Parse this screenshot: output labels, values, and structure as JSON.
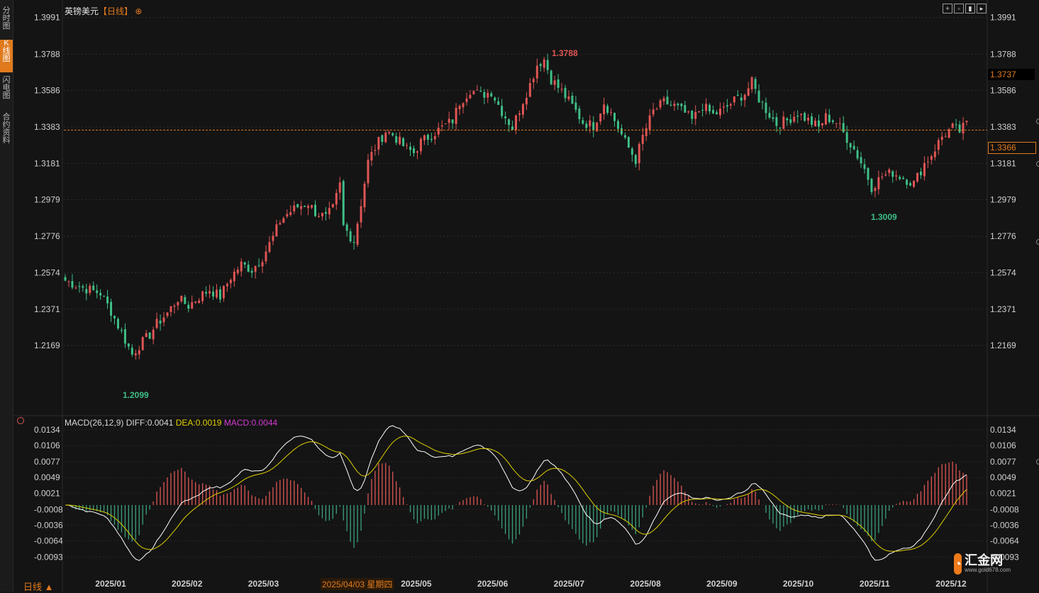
{
  "sidebar": {
    "tabs": [
      {
        "label": "分时图",
        "active": false
      },
      {
        "label": "K线图",
        "active": true
      },
      {
        "label": "闪电图",
        "active": false
      },
      {
        "label": "合约资料",
        "active": false
      }
    ]
  },
  "header": {
    "symbol": "英镑美元",
    "period_tag": "【日线】",
    "toggle_icon": "circle-plus-icon",
    "tool_icons": [
      "crosshair-icon",
      "zoom-icon",
      "period-icon",
      "play-icon"
    ]
  },
  "price_labels": {
    "current": "1.3737",
    "last": "1.3366",
    "high": "1.3788",
    "low": "1.3009",
    "low_start": "1.2099"
  },
  "macd_legend": {
    "name": "MACD(26,12,9)",
    "diff": "DIFF:0.0041",
    "dea": "DEA:0.0019",
    "macd": "MACD:0.0044"
  },
  "footer": {
    "period_button": "日线 ▲",
    "cursor_date": "2025/04/03 星期四"
  },
  "logo": {
    "name": "汇金网",
    "url": "www.gold678.com"
  },
  "chart_data": [
    {
      "type": "candlestick",
      "title": "英镑美元【日线】",
      "y_ticks": [
        "1.3991",
        "1.3788",
        "1.3586",
        "1.3383",
        "1.3181",
        "1.2979",
        "1.2776",
        "1.2574",
        "1.2371",
        "1.2169"
      ],
      "ylim": [
        1.2,
        1.399
      ],
      "x_ticks": [
        "2025/01",
        "2025/02",
        "2025/03",
        "2025/04",
        "2025/05",
        "2025/06",
        "2025/07",
        "2025/08",
        "2025/09",
        "2025/10",
        "2025/11",
        "2025/12"
      ],
      "last_price_line": 1.3366,
      "annotations": [
        {
          "label": "1.3788",
          "type": "high"
        },
        {
          "label": "1.3009",
          "type": "low"
        },
        {
          "label": "1.2099",
          "type": "low"
        }
      ],
      "close_path": [
        [
          0,
          1.253
        ],
        [
          5,
          1.249
        ],
        [
          10,
          1.246
        ],
        [
          13,
          1.236
        ],
        [
          16,
          1.224
        ],
        [
          19,
          1.212
        ],
        [
          21,
          1.217
        ],
        [
          24,
          1.223
        ],
        [
          26,
          1.229
        ],
        [
          29,
          1.235
        ],
        [
          32,
          1.243
        ],
        [
          35,
          1.239
        ],
        [
          38,
          1.244
        ],
        [
          41,
          1.248
        ],
        [
          44,
          1.244
        ],
        [
          47,
          1.255
        ],
        [
          50,
          1.262
        ],
        [
          53,
          1.259
        ],
        [
          56,
          1.266
        ],
        [
          59,
          1.277
        ],
        [
          61,
          1.286
        ],
        [
          63,
          1.29
        ],
        [
          66,
          1.294
        ],
        [
          69,
          1.296
        ],
        [
          71,
          1.291
        ],
        [
          74,
          1.288
        ],
        [
          76,
          1.293
        ],
        [
          78,
          1.306
        ],
        [
          79,
          1.283
        ],
        [
          82,
          1.275
        ],
        [
          84,
          1.296
        ],
        [
          86,
          1.319
        ],
        [
          88,
          1.327
        ],
        [
          91,
          1.336
        ],
        [
          93,
          1.334
        ],
        [
          95,
          1.33
        ],
        [
          97,
          1.326
        ],
        [
          99,
          1.324
        ],
        [
          101,
          1.33
        ],
        [
          104,
          1.334
        ],
        [
          107,
          1.338
        ],
        [
          110,
          1.342
        ],
        [
          112,
          1.352
        ],
        [
          115,
          1.359
        ],
        [
          118,
          1.356
        ],
        [
          121,
          1.358
        ],
        [
          124,
          1.347
        ],
        [
          127,
          1.338
        ],
        [
          130,
          1.353
        ],
        [
          132,
          1.362
        ],
        [
          134,
          1.373
        ],
        [
          136,
          1.376
        ],
        [
          138,
          1.365
        ],
        [
          141,
          1.358
        ],
        [
          144,
          1.35
        ],
        [
          147,
          1.341
        ],
        [
          150,
          1.339
        ],
        [
          153,
          1.352
        ],
        [
          155,
          1.346
        ],
        [
          157,
          1.338
        ],
        [
          159,
          1.33
        ],
        [
          162,
          1.32
        ],
        [
          164,
          1.333
        ],
        [
          167,
          1.347
        ],
        [
          170,
          1.352
        ],
        [
          173,
          1.35
        ],
        [
          176,
          1.346
        ],
        [
          178,
          1.342
        ],
        [
          181,
          1.35
        ],
        [
          184,
          1.345
        ],
        [
          187,
          1.348
        ],
        [
          190,
          1.353
        ],
        [
          193,
          1.357
        ],
        [
          195,
          1.363
        ],
        [
          197,
          1.354
        ],
        [
          199,
          1.348
        ],
        [
          202,
          1.34
        ],
        [
          205,
          1.342
        ],
        [
          208,
          1.346
        ],
        [
          211,
          1.342
        ],
        [
          214,
          1.338
        ],
        [
          216,
          1.344
        ],
        [
          219,
          1.341
        ],
        [
          222,
          1.332
        ],
        [
          224,
          1.326
        ],
        [
          227,
          1.315
        ],
        [
          229,
          1.305
        ],
        [
          232,
          1.311
        ],
        [
          235,
          1.313
        ],
        [
          238,
          1.31
        ],
        [
          241,
          1.307
        ],
        [
          244,
          1.318
        ],
        [
          246,
          1.323
        ],
        [
          249,
          1.333
        ],
        [
          252,
          1.338
        ],
        [
          254,
          1.336
        ],
        [
          256,
          1.34
        ]
      ],
      "n_bars": 257
    },
    {
      "type": "line+bar",
      "title": "MACD(26,12,9)",
      "y_ticks": [
        "0.0134",
        "0.0106",
        "0.0077",
        "0.0049",
        "0.0021",
        "-0.0008",
        "-0.0036",
        "-0.0064",
        "-0.0093"
      ],
      "ylim": [
        -0.0105,
        0.0134
      ],
      "series": [
        {
          "name": "DIFF",
          "color": "#ffffff"
        },
        {
          "name": "DEA",
          "color": "#e0d000"
        },
        {
          "name": "MACD",
          "colors": {
            "pos": "#e05555",
            "neg": "#3aa07a"
          }
        }
      ]
    }
  ]
}
